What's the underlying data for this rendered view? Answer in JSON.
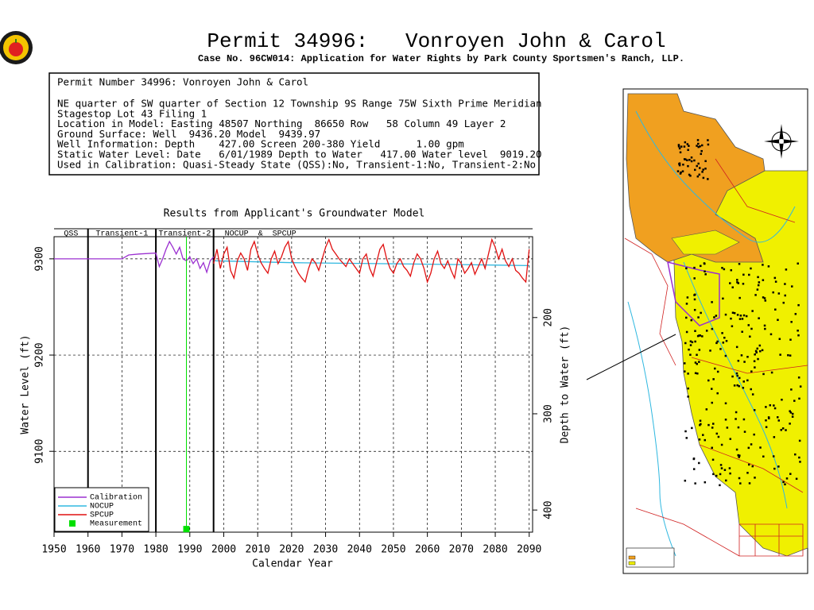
{
  "header": {
    "title": "Permit 34996:   Vonroyen John & Carol",
    "subtitle": "Case No. 96CW014: Application for Water Rights by Park County Sportsmen's Ranch, LLP."
  },
  "info": {
    "lines": [
      "Permit Number 34996: Vonroyen John & Carol",
      "NE quarter of SW quarter of Section 12 Township 9S Range 75W Sixth Prime Meridian",
      "Stagestop Lot 43 Filing 1",
      "Location in Model: Easting 48507 Northing  86650 Row   58 Column 49 Layer 2",
      "Ground Surface: Well  9436.20 Model  9439.97",
      "Well Information: Depth    427.00 Screen 200-380 Yield      1.00 gpm",
      "Static Water Level: Date   6/01/1989 Depth to Water   417.00 Water level  9019.20",
      "Used in Calibration: Quasi-Steady State (QSS):No, Transient-1:No, Transient-2:No"
    ]
  },
  "chart_data": {
    "type": "line",
    "title": "Results from Applicant's Groundwater Model",
    "xlabel": "Calendar Year",
    "ylabel": "Water Level (ft)",
    "y2label": "Depth to Water (ft)",
    "xlim": [
      1950,
      2091
    ],
    "xticks": [
      1950,
      1960,
      1970,
      1980,
      1990,
      2000,
      2010,
      2020,
      2030,
      2040,
      2050,
      2060,
      2070,
      2080,
      2090
    ],
    "ylim": [
      9016,
      9323
    ],
    "yticks": [
      9100,
      9200,
      9300
    ],
    "y2lim": [
      423,
      116
    ],
    "y2ticks": [
      200,
      300,
      400
    ],
    "grid": true,
    "legend": "lower-left",
    "periods": [
      {
        "label": "QSS",
        "start": 1950,
        "end": 1960
      },
      {
        "label": "Transient-1",
        "start": 1960,
        "end": 1980
      },
      {
        "label": "Transient-2",
        "start": 1980,
        "end": 1997
      },
      {
        "label": "NOCUP  &  SPCUP",
        "start": 1997,
        "end": 2091
      }
    ],
    "series": [
      {
        "name": "Calibration",
        "color": "#9b30d0",
        "style": "line",
        "x": [
          1950,
          1960,
          1970,
          1972,
          1975,
          1980,
          1981,
          1982,
          1983,
          1984,
          1985,
          1986,
          1987,
          1988,
          1989,
          1990,
          1991,
          1992,
          1993,
          1994,
          1995,
          1996,
          1997
        ],
        "values": [
          9300,
          9300,
          9300,
          9304,
          9305,
          9306,
          9292,
          9300,
          9310,
          9318,
          9312,
          9305,
          9312,
          9300,
          9298,
          9302,
          9295,
          9300,
          9290,
          9296,
          9286,
          9298,
          9302
        ]
      },
      {
        "name": "NOCUP",
        "color": "#30b8e0",
        "style": "line",
        "x": [
          1997,
          2020,
          2045,
          2070,
          2090
        ],
        "values": [
          9298,
          9296,
          9295,
          9294,
          9293
        ]
      },
      {
        "name": "SPCUP",
        "color": "#e01010",
        "style": "line",
        "x": [
          1997,
          1998,
          1999,
          2000,
          2001,
          2002,
          2003,
          2004,
          2005,
          2006,
          2007,
          2008,
          2009,
          2010,
          2011,
          2012,
          2013,
          2014,
          2015,
          2016,
          2017,
          2018,
          2019,
          2020,
          2021,
          2022,
          2023,
          2024,
          2025,
          2026,
          2027,
          2028,
          2029,
          2030,
          2031,
          2032,
          2033,
          2034,
          2035,
          2036,
          2037,
          2038,
          2039,
          2040,
          2041,
          2042,
          2043,
          2044,
          2045,
          2046,
          2047,
          2048,
          2049,
          2050,
          2051,
          2052,
          2053,
          2054,
          2055,
          2056,
          2057,
          2058,
          2059,
          2060,
          2061,
          2062,
          2063,
          2064,
          2065,
          2066,
          2067,
          2068,
          2069,
          2070,
          2071,
          2072,
          2073,
          2074,
          2075,
          2076,
          2077,
          2078,
          2079,
          2080,
          2081,
          2082,
          2083,
          2084,
          2085,
          2086,
          2087,
          2088,
          2089,
          2090
        ],
        "values": [
          9295,
          9310,
          9290,
          9305,
          9312,
          9288,
          9280,
          9298,
          9306,
          9300,
          9288,
          9310,
          9318,
          9305,
          9296,
          9290,
          9285,
          9300,
          9308,
          9295,
          9302,
          9312,
          9318,
          9300,
          9292,
          9285,
          9280,
          9276,
          9290,
          9300,
          9296,
          9288,
          9300,
          9312,
          9320,
          9310,
          9305,
          9300,
          9296,
          9292,
          9300,
          9295,
          9290,
          9285,
          9300,
          9305,
          9290,
          9282,
          9296,
          9310,
          9315,
          9300,
          9290,
          9285,
          9295,
          9300,
          9292,
          9288,
          9282,
          9296,
          9305,
          9300,
          9290,
          9276,
          9285,
          9300,
          9308,
          9295,
          9290,
          9298,
          9288,
          9280,
          9300,
          9295,
          9285,
          9290,
          9296,
          9284,
          9292,
          9300,
          9290,
          9305,
          9320,
          9312,
          9300,
          9310,
          9298,
          9292,
          9300,
          9288,
          9285,
          9280,
          9276,
          9310
        ]
      },
      {
        "name": "Measurement",
        "color": "#00e000",
        "style": "point",
        "x": [
          1989
        ],
        "values": [
          9019.2
        ]
      }
    ]
  }
}
